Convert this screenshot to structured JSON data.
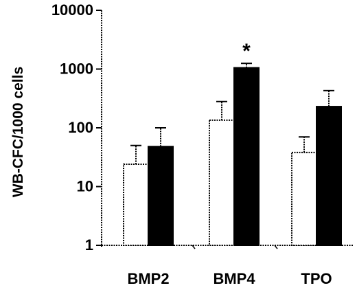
{
  "chart_data": {
    "type": "bar",
    "title": "",
    "xlabel": "",
    "ylabel": "WB-CFC/1000 cells",
    "yscale": "log",
    "ylim": [
      1,
      10000
    ],
    "yticks": [
      "1",
      "10",
      "100",
      "1000",
      "10000"
    ],
    "ytick_values": [
      1,
      10,
      100,
      1000,
      10000
    ],
    "grid": false,
    "legend": "none",
    "categories": [
      "BMP2",
      "BMP4",
      "TPO"
    ],
    "series": [
      {
        "values": [
          24,
          135,
          38
        ],
        "errors": [
          50,
          280,
          70
        ],
        "fill": "#ffffff"
      },
      {
        "values": [
          48,
          1050,
          230
        ],
        "errors": [
          100,
          1250,
          430
        ],
        "fill": "#000000"
      }
    ],
    "annotations": [
      {
        "category": "BMP4",
        "series": 1,
        "text": "*"
      }
    ]
  }
}
